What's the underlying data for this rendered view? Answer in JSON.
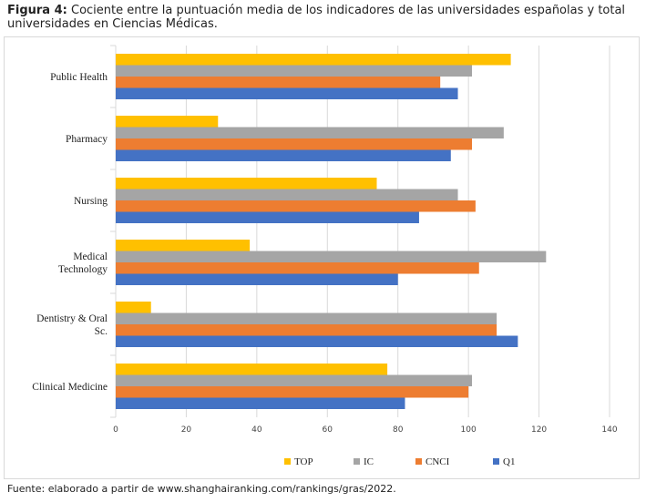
{
  "caption": {
    "label": "Figura 4:",
    "text": "Cociente entre la puntuación media de los indicadores de las universidades españolas y total universidades en Ciencias Médicas."
  },
  "source": "Fuente: elaborado a partir de www.shanghairanking.com/rankings/gras/2022.",
  "chart_data": {
    "type": "bar",
    "orientation": "horizontal",
    "categories": [
      [
        "Public Health"
      ],
      [
        "Pharmacy"
      ],
      [
        "Nursing"
      ],
      [
        "Medical",
        "Technology"
      ],
      [
        "Dentistry & Oral",
        "Sc."
      ],
      [
        "Clinical Medicine"
      ]
    ],
    "series": [
      {
        "name": "TOP",
        "color": "#FFC000",
        "values": [
          112,
          29,
          74,
          38,
          10,
          77
        ]
      },
      {
        "name": "IC",
        "color": "#A5A5A5",
        "values": [
          101,
          110,
          97,
          122,
          108,
          101
        ]
      },
      {
        "name": "CNCI",
        "color": "#ED7D31",
        "values": [
          92,
          101,
          102,
          103,
          108,
          100
        ]
      },
      {
        "name": "Q1",
        "color": "#4472C4",
        "values": [
          97,
          95,
          86,
          80,
          114,
          82
        ]
      }
    ],
    "xlim": [
      0,
      140
    ],
    "xticks": [
      0,
      20,
      40,
      60,
      80,
      100,
      120,
      140
    ],
    "grid": true,
    "legend": "bottom"
  }
}
